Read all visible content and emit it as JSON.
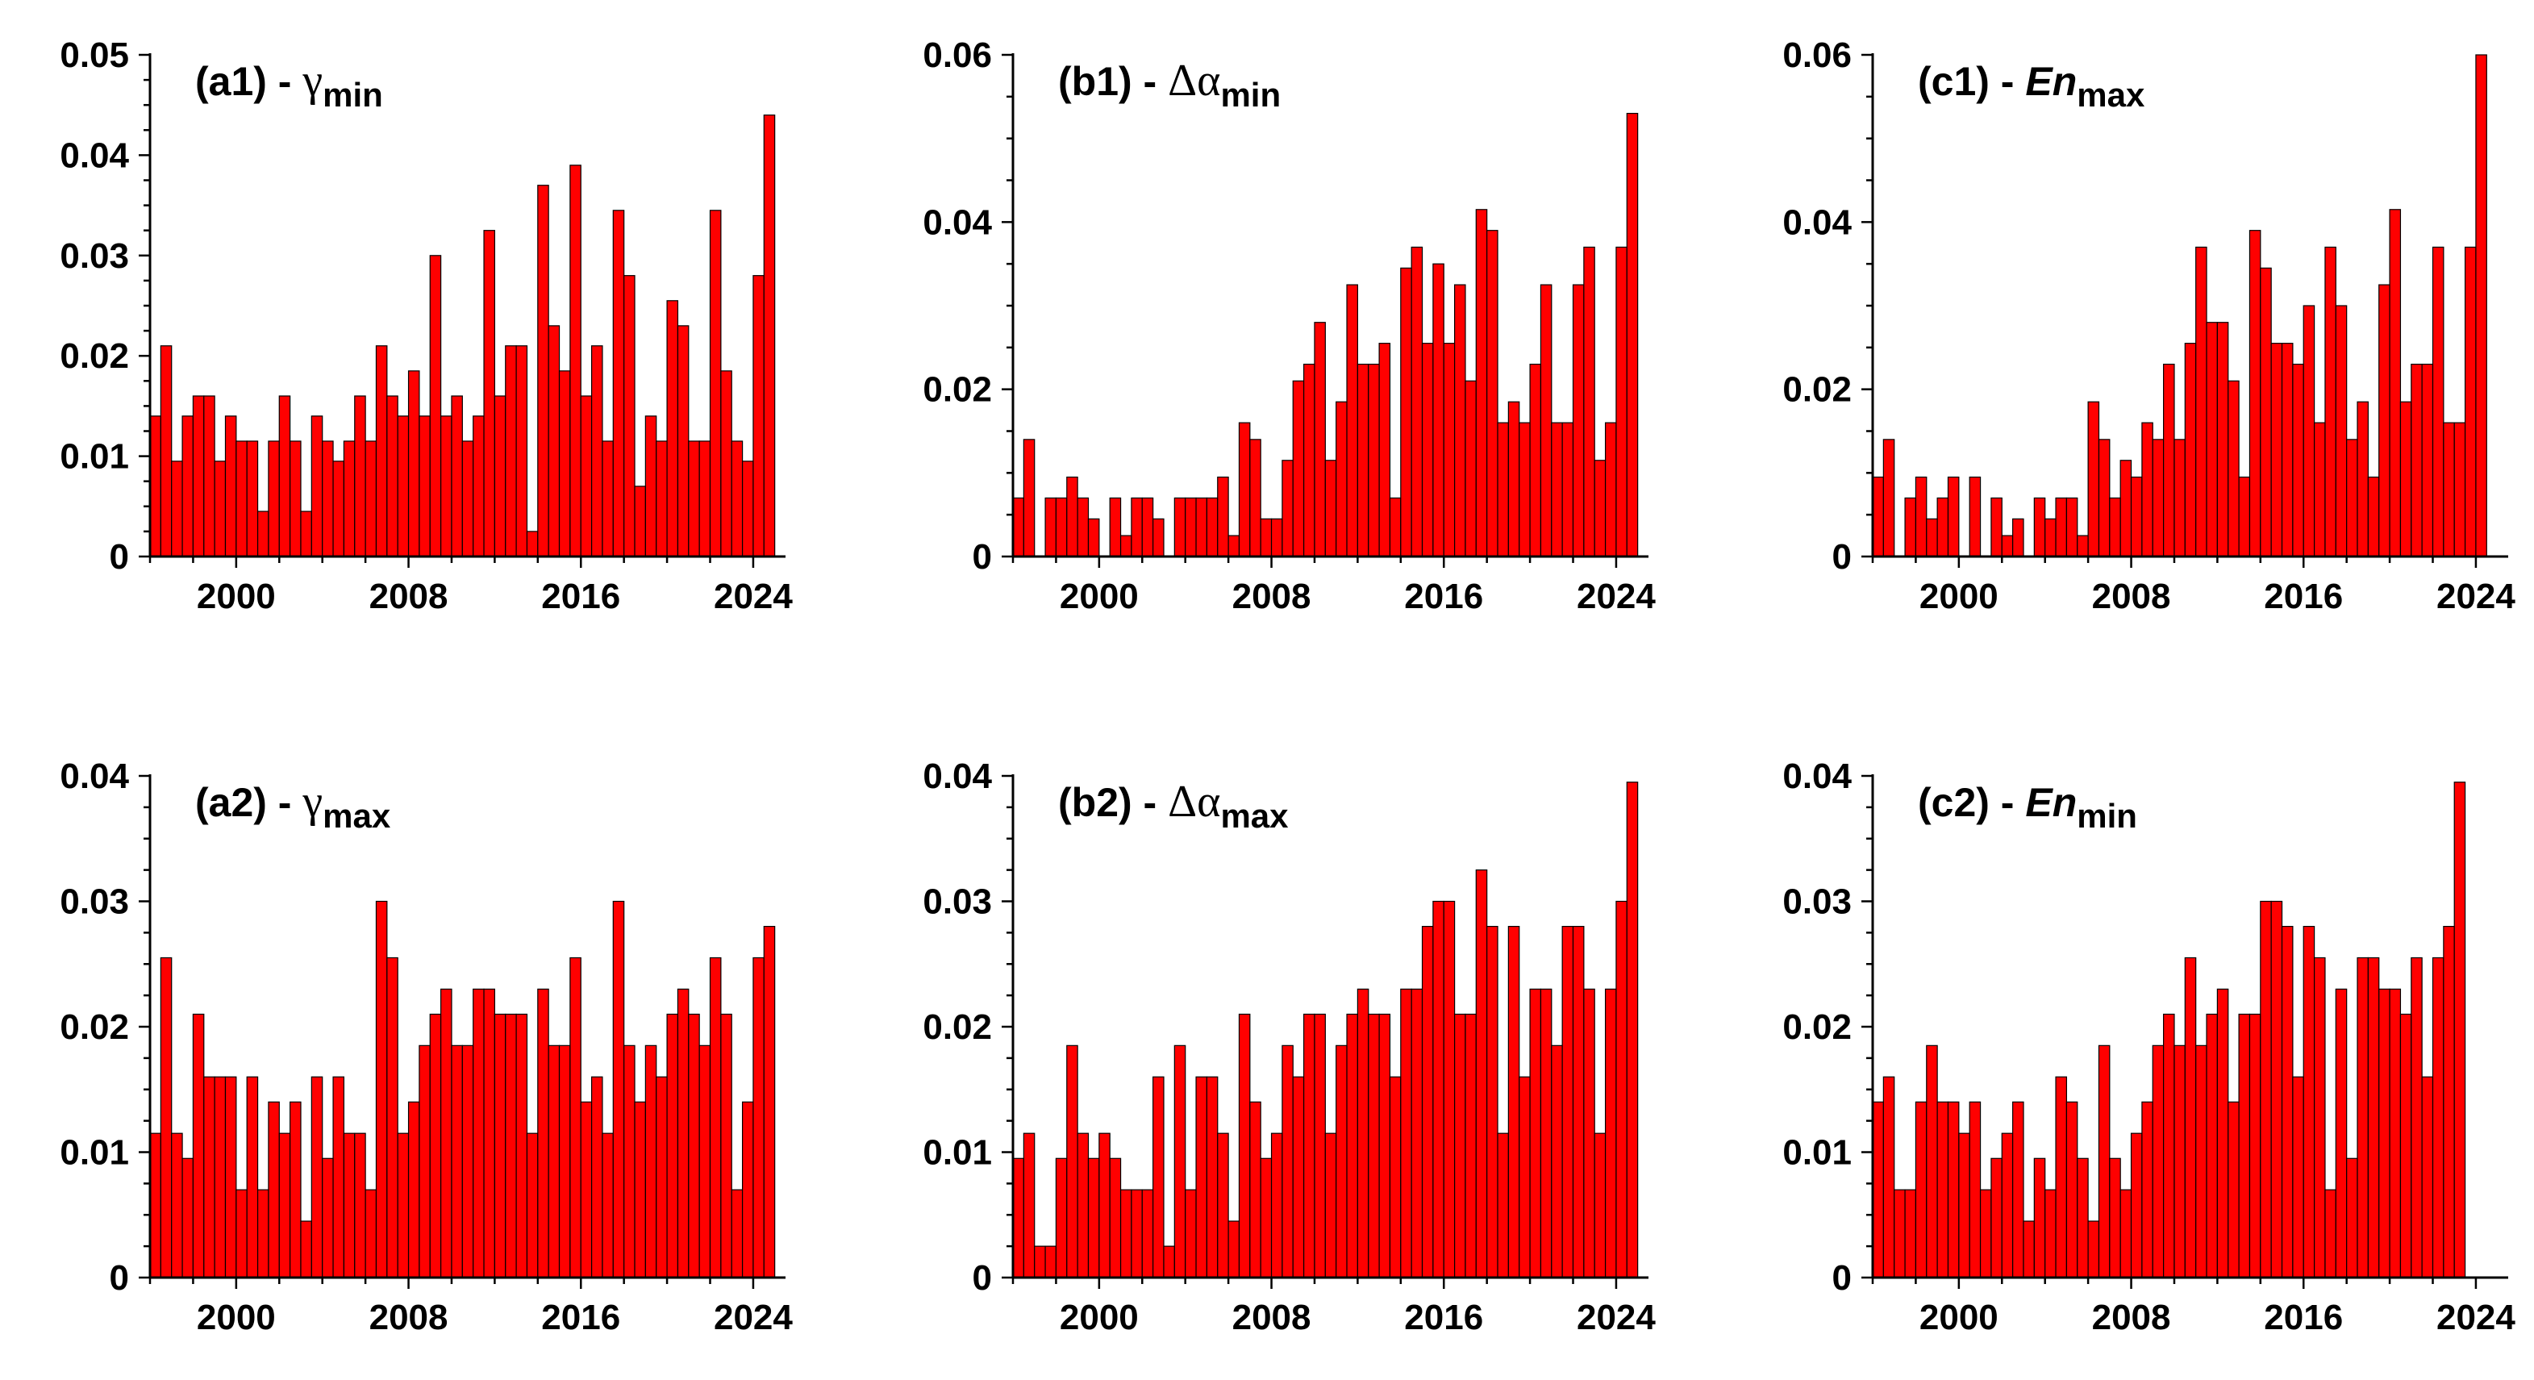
{
  "chart_data": [
    {
      "type": "bar",
      "panel": "a1",
      "title_parts": {
        "label": "(a1)",
        "sep": "-",
        "symbol": "γ",
        "sub": "min"
      },
      "x_start": 1996,
      "x_step": 0.5,
      "xticks": [
        2000,
        2008,
        2016,
        2024
      ],
      "xtick_labels": [
        "2000",
        "2008",
        "2016",
        "2024"
      ],
      "ylim": [
        0,
        0.05
      ],
      "yticks": [
        0,
        0.01,
        0.02,
        0.03,
        0.04,
        0.05
      ],
      "ytick_labels": [
        "0",
        "0.01",
        "0.02",
        "0.03",
        "0.04",
        "0.05"
      ],
      "values": [
        0.014,
        0.021,
        0.0095,
        0.014,
        0.016,
        0.016,
        0.0095,
        0.014,
        0.0115,
        0.0115,
        0.0045,
        0.0115,
        0.016,
        0.0115,
        0.0045,
        0.014,
        0.0115,
        0.0095,
        0.0115,
        0.016,
        0.0115,
        0.021,
        0.016,
        0.014,
        0.0185,
        0.014,
        0.03,
        0.014,
        0.016,
        0.0115,
        0.014,
        0.0325,
        0.016,
        0.021,
        0.021,
        0.0025,
        0.037,
        0.023,
        0.0185,
        0.039,
        0.016,
        0.021,
        0.0115,
        0.0345,
        0.028,
        0.007,
        0.014,
        0.0115,
        0.0255,
        0.023,
        0.0115,
        0.0115,
        0.0345,
        0.0185,
        0.0115,
        0.0095,
        0.028,
        0.044
      ]
    },
    {
      "type": "bar",
      "panel": "b1",
      "title_parts": {
        "label": "(b1)",
        "sep": "-",
        "symbol": "Δα",
        "sub": "min"
      },
      "x_start": 1996,
      "x_step": 0.5,
      "xticks": [
        2000,
        2008,
        2016,
        2024
      ],
      "xtick_labels": [
        "2000",
        "2008",
        "2016",
        "2024"
      ],
      "ylim": [
        0,
        0.06
      ],
      "yticks": [
        0,
        0.02,
        0.04,
        0.06
      ],
      "ytick_labels": [
        "0",
        "0.02",
        "0.04",
        "0.06"
      ],
      "values": [
        0.007,
        0.014,
        0,
        0.007,
        0.007,
        0.0095,
        0.007,
        0.0045,
        0,
        0.007,
        0.0025,
        0.007,
        0.007,
        0.0045,
        0,
        0.007,
        0.007,
        0.007,
        0.007,
        0.0095,
        0.0025,
        0.016,
        0.014,
        0.0045,
        0.0045,
        0.0115,
        0.021,
        0.023,
        0.028,
        0.0115,
        0.0185,
        0.0325,
        0.023,
        0.023,
        0.0255,
        0.007,
        0.0345,
        0.037,
        0.0255,
        0.035,
        0.0255,
        0.0325,
        0.021,
        0.0415,
        0.039,
        0.016,
        0.0185,
        0.016,
        0.023,
        0.0325,
        0.016,
        0.016,
        0.0325,
        0.037,
        0.0115,
        0.016,
        0.037,
        0.053
      ]
    },
    {
      "type": "bar",
      "panel": "c1",
      "title_parts": {
        "label": "(c1)",
        "sep": "-",
        "symbol": "En",
        "sub": "max"
      },
      "x_start": 1996,
      "x_step": 0.5,
      "xticks": [
        2000,
        2008,
        2016,
        2024
      ],
      "xtick_labels": [
        "2000",
        "2008",
        "2016",
        "2024"
      ],
      "ylim": [
        0,
        0.06
      ],
      "yticks": [
        0,
        0.02,
        0.04,
        0.06
      ],
      "ytick_labels": [
        "0",
        "0.02",
        "0.04",
        "0.06"
      ],
      "values": [
        0.0095,
        0.014,
        0,
        0.007,
        0.0095,
        0.0045,
        0.007,
        0.0095,
        0,
        0.0095,
        0,
        0.007,
        0.0025,
        0.0045,
        0,
        0.007,
        0.0045,
        0.007,
        0.007,
        0.0025,
        0.0185,
        0.014,
        0.007,
        0.0115,
        0.0095,
        0.016,
        0.014,
        0.023,
        0.014,
        0.0255,
        0.037,
        0.028,
        0.028,
        0.021,
        0.0095,
        0.039,
        0.0345,
        0.0255,
        0.0255,
        0.023,
        0.03,
        0.016,
        0.037,
        0.03,
        0.014,
        0.0185,
        0.0095,
        0.0325,
        0.0415,
        0.0185,
        0.023,
        0.023,
        0.037,
        0.016,
        0.016,
        0.037,
        0.06
      ]
    },
    {
      "type": "bar",
      "panel": "a2",
      "title_parts": {
        "label": "(a2)",
        "sep": "-",
        "symbol": "γ",
        "sub": "max"
      },
      "x_start": 1996,
      "x_step": 0.5,
      "xticks": [
        2000,
        2008,
        2016,
        2024
      ],
      "xtick_labels": [
        "2000",
        "2008",
        "2016",
        "2024"
      ],
      "ylim": [
        0,
        0.04
      ],
      "yticks": [
        0,
        0.01,
        0.02,
        0.03,
        0.04
      ],
      "ytick_labels": [
        "0",
        "0.01",
        "0.02",
        "0.03",
        "0.04"
      ],
      "values": [
        0.0115,
        0.0255,
        0.0115,
        0.0095,
        0.021,
        0.016,
        0.016,
        0.016,
        0.007,
        0.016,
        0.007,
        0.014,
        0.0115,
        0.014,
        0.0045,
        0.016,
        0.0095,
        0.016,
        0.0115,
        0.0115,
        0.007,
        0.03,
        0.0255,
        0.0115,
        0.014,
        0.0185,
        0.021,
        0.023,
        0.0185,
        0.0185,
        0.023,
        0.023,
        0.021,
        0.021,
        0.021,
        0.0115,
        0.023,
        0.0185,
        0.0185,
        0.0255,
        0.014,
        0.016,
        0.0115,
        0.03,
        0.0185,
        0.014,
        0.0185,
        0.016,
        0.021,
        0.023,
        0.021,
        0.0185,
        0.0255,
        0.021,
        0.007,
        0.014,
        0.0255,
        0.028
      ]
    },
    {
      "type": "bar",
      "panel": "b2",
      "title_parts": {
        "label": "(b2)",
        "sep": "-",
        "symbol": "Δα",
        "sub": "max"
      },
      "x_start": 1996,
      "x_step": 0.5,
      "xticks": [
        2000,
        2008,
        2016,
        2024
      ],
      "xtick_labels": [
        "2000",
        "2008",
        "2016",
        "2024"
      ],
      "ylim": [
        0,
        0.04
      ],
      "yticks": [
        0,
        0.01,
        0.02,
        0.03,
        0.04
      ],
      "ytick_labels": [
        "0",
        "0.01",
        "0.02",
        "0.03",
        "0.04"
      ],
      "values": [
        0.0095,
        0.0115,
        0.0025,
        0.0025,
        0.0095,
        0.0185,
        0.0115,
        0.0095,
        0.0115,
        0.0095,
        0.007,
        0.007,
        0.007,
        0.016,
        0.0025,
        0.0185,
        0.007,
        0.016,
        0.016,
        0.0115,
        0.0045,
        0.021,
        0.014,
        0.0095,
        0.0115,
        0.0185,
        0.016,
        0.021,
        0.021,
        0.0115,
        0.0185,
        0.021,
        0.023,
        0.021,
        0.021,
        0.016,
        0.023,
        0.023,
        0.028,
        0.03,
        0.03,
        0.021,
        0.021,
        0.0325,
        0.028,
        0.0115,
        0.028,
        0.016,
        0.023,
        0.023,
        0.0185,
        0.028,
        0.028,
        0.023,
        0.0115,
        0.023,
        0.03,
        0.0395
      ]
    },
    {
      "type": "bar",
      "panel": "c2",
      "title_parts": {
        "label": "(c2)",
        "sep": "-",
        "symbol": "En",
        "sub": "min"
      },
      "x_start": 1996,
      "x_step": 0.5,
      "xticks": [
        2000,
        2008,
        2016,
        2024
      ],
      "xtick_labels": [
        "2000",
        "2008",
        "2016",
        "2024"
      ],
      "ylim": [
        0,
        0.04
      ],
      "yticks": [
        0,
        0.01,
        0.02,
        0.03,
        0.04
      ],
      "ytick_labels": [
        "0",
        "0.01",
        "0.02",
        "0.03",
        "0.04"
      ],
      "values": [
        0.014,
        0.016,
        0.007,
        0.007,
        0.014,
        0.0185,
        0.014,
        0.014,
        0.0115,
        0.014,
        0.007,
        0.0095,
        0.0115,
        0.014,
        0.0045,
        0.0095,
        0.007,
        0.016,
        0.014,
        0.0095,
        0.0045,
        0.0185,
        0.0095,
        0.007,
        0.0115,
        0.014,
        0.0185,
        0.021,
        0.0185,
        0.0255,
        0.0185,
        0.021,
        0.023,
        0.014,
        0.021,
        0.021,
        0.03,
        0.03,
        0.028,
        0.016,
        0.028,
        0.0255,
        0.007,
        0.023,
        0.0095,
        0.0255,
        0.0255,
        0.023,
        0.023,
        0.021,
        0.0255,
        0.016,
        0.0255,
        0.028,
        0.0395
      ]
    }
  ]
}
